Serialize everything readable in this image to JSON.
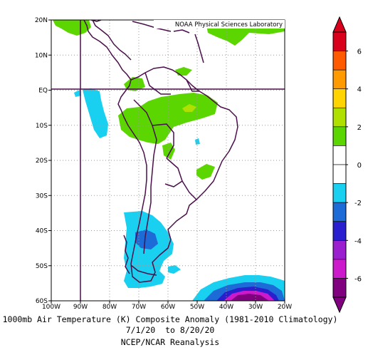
{
  "map": {
    "credit": "NOAA Physical Sciences Laboratory",
    "lat_labels": [
      "20N",
      "10N",
      "EQ",
      "10S",
      "20S",
      "30S",
      "40S",
      "50S",
      "60S"
    ],
    "lon_labels": [
      "100W",
      "90W",
      "80W",
      "70W",
      "60W",
      "50W",
      "40W",
      "30W",
      "20W"
    ],
    "extent": {
      "lon_min": -100,
      "lon_max": -20,
      "lat_min": -60,
      "lat_max": 20
    },
    "reference_lines": [
      "EQ",
      "90W"
    ]
  },
  "colorbar": {
    "labels": [
      "6",
      "4",
      "2",
      "0",
      "-2",
      "-4",
      "-6"
    ],
    "bins": [
      {
        "color": "#d9001c"
      },
      {
        "color": "#ff5a00"
      },
      {
        "color": "#ff9a00"
      },
      {
        "color": "#ffd400"
      },
      {
        "color": "#b0e000"
      },
      {
        "color": "#5cd600"
      },
      {
        "color": "#ffffff"
      },
      {
        "color": "#ffffff"
      },
      {
        "color": "#19d0f0"
      },
      {
        "color": "#1c6bd6"
      },
      {
        "color": "#2a1fcf"
      },
      {
        "color": "#9a1fcf"
      },
      {
        "color": "#cc19cc"
      },
      {
        "color": "#800080"
      }
    ]
  },
  "caption": {
    "line1": "1000mb Air Temperature (K) Composite Anomaly (1981-2010 Climatology)",
    "line2": "7/1/20  to 8/20/20",
    "line3": "NCEP/NCAR Reanalysis"
  },
  "colors": {
    "coast": "#4b0f4b",
    "grid_dots": "#9a9a9a",
    "green": "#5cd600",
    "yellow": "#b0e000",
    "cyan": "#19d0f0",
    "blue": "#1c6bd6",
    "indigo": "#2a1fcf",
    "violet": "#9a1fcf",
    "magenta": "#cc19cc",
    "purple": "#800080"
  }
}
